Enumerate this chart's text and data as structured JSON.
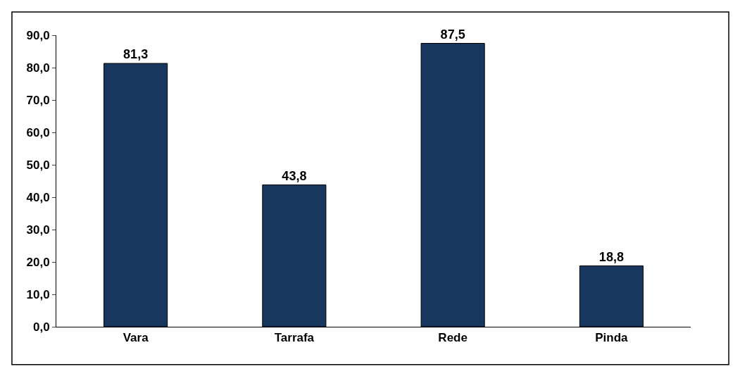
{
  "chart_data": {
    "type": "bar",
    "categories": [
      "Vara",
      "Tarrafa",
      "Rede",
      "Pinda"
    ],
    "values": [
      81.3,
      43.8,
      87.5,
      18.8
    ],
    "value_labels": [
      "81,3",
      "43,8",
      "87,5",
      "18,8"
    ],
    "color": "#17375e",
    "ylim": [
      0,
      90
    ],
    "yticks": [
      {
        "value": 0,
        "label": "0,0"
      },
      {
        "value": 10,
        "label": "10,0"
      },
      {
        "value": 20,
        "label": "20,0"
      },
      {
        "value": 30,
        "label": "30,0"
      },
      {
        "value": 40,
        "label": "40,0"
      },
      {
        "value": 50,
        "label": "50,0"
      },
      {
        "value": 60,
        "label": "60,0"
      },
      {
        "value": 70,
        "label": "70,0"
      },
      {
        "value": 80,
        "label": "80,0"
      },
      {
        "value": 90,
        "label": "90,0"
      }
    ],
    "grid": false
  }
}
